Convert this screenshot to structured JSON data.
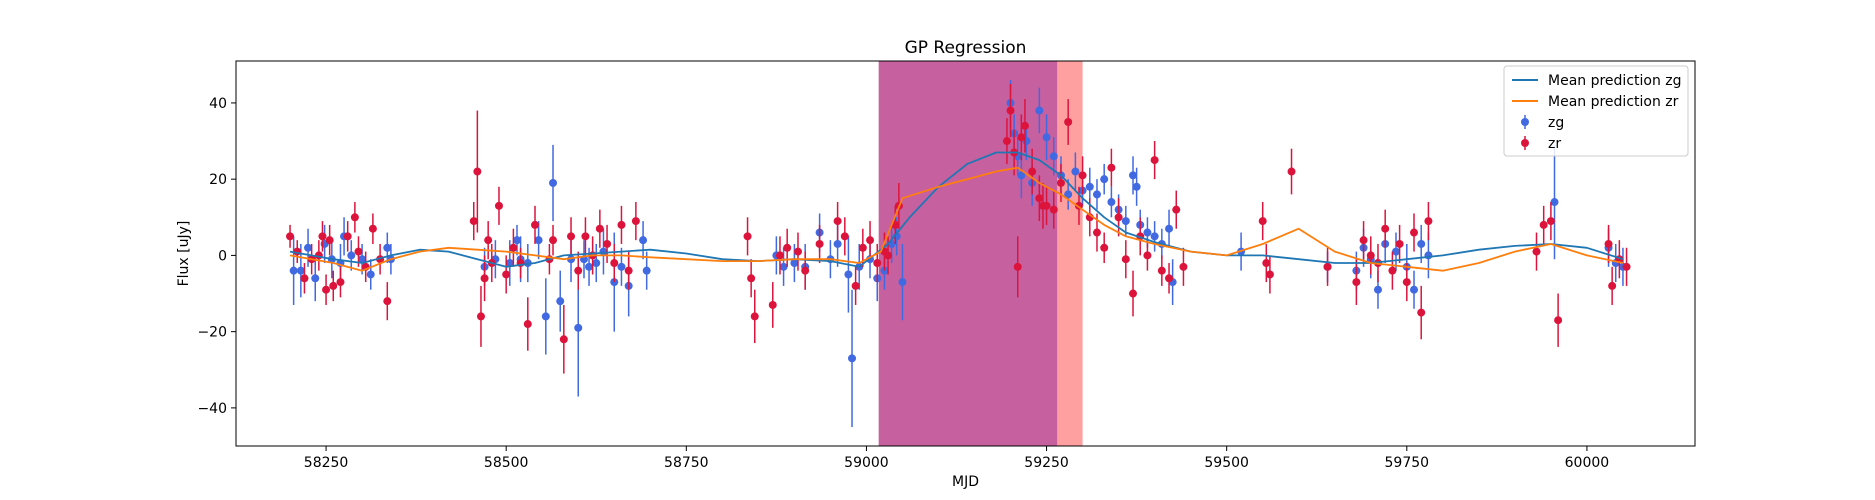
{
  "chart_data": {
    "type": "scatter",
    "title": "GP Regression",
    "xlabel": "MJD",
    "ylabel": "Flux [uJy]",
    "xlim": [
      58125,
      60150
    ],
    "ylim": [
      -50,
      51
    ],
    "xticks": [
      58250,
      58500,
      58750,
      59000,
      59250,
      59500,
      59750,
      60000
    ],
    "yticks": [
      -40,
      -20,
      0,
      20,
      40
    ],
    "grid": false,
    "legend_position": "top-right",
    "shaded_regions": [
      {
        "x_start": 59017,
        "x_end": 59265,
        "color": "#c7609f",
        "label": ""
      },
      {
        "x_start": 59265,
        "x_end": 59300,
        "color": "#ffa0a0",
        "label": ""
      }
    ],
    "lines": [
      {
        "name": "Mean prediction zg",
        "color": "#1f77b4",
        "x": [
          58200,
          58260,
          58300,
          58340,
          58380,
          58420,
          58460,
          58500,
          58540,
          58580,
          58620,
          58660,
          58700,
          58750,
          58800,
          58850,
          58900,
          58950,
          58990,
          59030,
          59060,
          59100,
          59140,
          59180,
          59210,
          59240,
          59270,
          59300,
          59330,
          59360,
          59400,
          59450,
          59500,
          59550,
          59600,
          59650,
          59700,
          59750,
          59800,
          59850,
          59900,
          59950,
          60000,
          60050
        ],
        "y": [
          1,
          -1,
          -2,
          0,
          1.5,
          1,
          -1,
          -3,
          -2,
          0,
          0.5,
          1,
          1.5,
          0.5,
          -1,
          -1.5,
          -1,
          -1.5,
          -3,
          3,
          10,
          18,
          24,
          27,
          27,
          25,
          21,
          15,
          10,
          6,
          3.5,
          1,
          0,
          0,
          -1,
          -2,
          -2,
          -1,
          0,
          1.5,
          2.5,
          3,
          2,
          -1
        ]
      },
      {
        "name": "Mean prediction zr",
        "color": "#ff7f0e",
        "x": [
          58200,
          58260,
          58300,
          58340,
          58380,
          58420,
          58460,
          58500,
          58540,
          58580,
          58620,
          58660,
          58700,
          58750,
          58800,
          58850,
          58900,
          58950,
          58990,
          59020,
          59050,
          59100,
          59140,
          59180,
          59210,
          59240,
          59270,
          59300,
          59330,
          59360,
          59400,
          59450,
          59500,
          59550,
          59600,
          59650,
          59700,
          59750,
          59800,
          59850,
          59900,
          59950,
          60000,
          60050
        ],
        "y": [
          0,
          -2,
          -4,
          -1,
          1,
          2,
          1.5,
          1,
          0,
          -1,
          0,
          0,
          -0.5,
          -1,
          -1.5,
          -1.5,
          -1,
          -1,
          -2,
          1,
          15,
          18,
          20,
          22,
          23,
          19,
          16,
          12,
          8,
          5,
          3,
          1,
          0,
          3,
          7,
          1,
          -2,
          -3,
          -4,
          -2,
          1,
          3,
          0,
          -2
        ]
      }
    ],
    "series": [
      {
        "name": "zg",
        "color": "#4169e1",
        "points": [
          [
            58205,
            -4,
            9
          ],
          [
            58215,
            -4,
            7
          ],
          [
            58225,
            2,
            5
          ],
          [
            58235,
            -6,
            6
          ],
          [
            58248,
            3,
            5
          ],
          [
            58258,
            -1,
            5
          ],
          [
            58270,
            -2,
            5
          ],
          [
            58275,
            5,
            5
          ],
          [
            58285,
            0,
            4
          ],
          [
            58300,
            -1,
            4
          ],
          [
            58312,
            -5,
            4
          ],
          [
            58335,
            2,
            4
          ],
          [
            58340,
            -1,
            4
          ],
          [
            58470,
            -3,
            5
          ],
          [
            58485,
            -1,
            5
          ],
          [
            58505,
            -2,
            6
          ],
          [
            58515,
            4,
            4
          ],
          [
            58520,
            -1,
            6
          ],
          [
            58530,
            -2,
            5
          ],
          [
            58545,
            4,
            5
          ],
          [
            58555,
            -16,
            10
          ],
          [
            58565,
            19,
            10
          ],
          [
            58575,
            -12,
            8
          ],
          [
            58590,
            -1,
            6
          ],
          [
            58600,
            -19,
            18
          ],
          [
            58608,
            -1,
            5
          ],
          [
            58615,
            -3,
            5
          ],
          [
            58625,
            -2,
            5
          ],
          [
            58635,
            1,
            6
          ],
          [
            58650,
            -7,
            13
          ],
          [
            58660,
            -3,
            5
          ],
          [
            58670,
            -8,
            8
          ],
          [
            58690,
            4,
            5
          ],
          [
            58695,
            -4,
            5
          ],
          [
            58875,
            0,
            5
          ],
          [
            58885,
            -3,
            5
          ],
          [
            58900,
            -2,
            5
          ],
          [
            58915,
            -3,
            6
          ],
          [
            58935,
            6,
            5
          ],
          [
            58950,
            -1,
            5
          ],
          [
            58960,
            3,
            6
          ],
          [
            58975,
            -5,
            10
          ],
          [
            58980,
            -27,
            18
          ],
          [
            58990,
            -3,
            6
          ],
          [
            59005,
            -1,
            5
          ],
          [
            59015,
            -6,
            6
          ],
          [
            59025,
            -4,
            5
          ],
          [
            59035,
            3,
            5
          ],
          [
            59042,
            5,
            5
          ],
          [
            59050,
            -7,
            10
          ],
          [
            59200,
            40,
            6
          ],
          [
            59205,
            32,
            5
          ],
          [
            59210,
            26,
            5
          ],
          [
            59215,
            21,
            6
          ],
          [
            59222,
            30,
            5
          ],
          [
            59230,
            19,
            6
          ],
          [
            59240,
            38,
            6
          ],
          [
            59250,
            31,
            6
          ],
          [
            59260,
            26,
            5
          ],
          [
            59270,
            21,
            5
          ],
          [
            59280,
            16,
            4
          ],
          [
            59290,
            22,
            5
          ],
          [
            59300,
            17,
            4
          ],
          [
            59310,
            18,
            5
          ],
          [
            59320,
            16,
            4
          ],
          [
            59330,
            20,
            4
          ],
          [
            59340,
            14,
            4
          ],
          [
            59350,
            12,
            4
          ],
          [
            59360,
            9,
            4
          ],
          [
            59370,
            21,
            5
          ],
          [
            59375,
            18,
            5
          ],
          [
            59380,
            8,
            4
          ],
          [
            59390,
            6,
            4
          ],
          [
            59400,
            5,
            4
          ],
          [
            59410,
            3,
            4
          ],
          [
            59420,
            7,
            5
          ],
          [
            59425,
            -7,
            6
          ],
          [
            59520,
            1,
            5
          ],
          [
            59640,
            -3,
            4
          ],
          [
            59680,
            -4,
            5
          ],
          [
            59690,
            2,
            5
          ],
          [
            59700,
            -1,
            5
          ],
          [
            59710,
            -9,
            5
          ],
          [
            59720,
            3,
            5
          ],
          [
            59735,
            1,
            5
          ],
          [
            59750,
            -3,
            6
          ],
          [
            59760,
            -9,
            5
          ],
          [
            59770,
            3,
            5
          ],
          [
            59780,
            0,
            6
          ],
          [
            59955,
            14,
            15
          ],
          [
            60030,
            2,
            5
          ],
          [
            60040,
            -2,
            5
          ],
          [
            60050,
            -3,
            5
          ]
        ]
      },
      {
        "name": "zr",
        "color": "#dc143c",
        "points": [
          [
            58200,
            5,
            3
          ],
          [
            58210,
            1,
            3
          ],
          [
            58220,
            -6,
            4
          ],
          [
            58230,
            -1,
            4
          ],
          [
            58240,
            0,
            4
          ],
          [
            58245,
            5,
            4
          ],
          [
            58250,
            -9,
            4
          ],
          [
            58255,
            4,
            4
          ],
          [
            58260,
            -8,
            4
          ],
          [
            58270,
            -7,
            4
          ],
          [
            58280,
            5,
            4
          ],
          [
            58290,
            10,
            4
          ],
          [
            58295,
            1,
            4
          ],
          [
            58305,
            -3,
            4
          ],
          [
            58315,
            7,
            4
          ],
          [
            58325,
            -1,
            4
          ],
          [
            58335,
            -12,
            5
          ],
          [
            58455,
            9,
            5
          ],
          [
            58460,
            22,
            16
          ],
          [
            58465,
            -16,
            8
          ],
          [
            58470,
            -6,
            6
          ],
          [
            58475,
            4,
            5
          ],
          [
            58480,
            -2,
            5
          ],
          [
            58490,
            13,
            5
          ],
          [
            58500,
            -5,
            5
          ],
          [
            58510,
            2,
            5
          ],
          [
            58520,
            -2,
            4
          ],
          [
            58530,
            -18,
            7
          ],
          [
            58540,
            8,
            5
          ],
          [
            58560,
            -1,
            4
          ],
          [
            58565,
            4,
            4
          ],
          [
            58580,
            -22,
            9
          ],
          [
            58590,
            5,
            5
          ],
          [
            58600,
            -4,
            5
          ],
          [
            58610,
            5,
            5
          ],
          [
            58620,
            0,
            5
          ],
          [
            58630,
            7,
            5
          ],
          [
            58640,
            3,
            5
          ],
          [
            58650,
            -2,
            5
          ],
          [
            58660,
            8,
            5
          ],
          [
            58670,
            -4,
            5
          ],
          [
            58680,
            9,
            5
          ],
          [
            58835,
            5,
            5
          ],
          [
            58840,
            -6,
            5
          ],
          [
            58845,
            -16,
            7
          ],
          [
            58870,
            -13,
            6
          ],
          [
            58880,
            0,
            5
          ],
          [
            58890,
            2,
            5
          ],
          [
            58905,
            1,
            5
          ],
          [
            58915,
            -4,
            5
          ],
          [
            58935,
            3,
            5
          ],
          [
            58960,
            9,
            5
          ],
          [
            58970,
            5,
            5
          ],
          [
            58985,
            -8,
            5
          ],
          [
            58995,
            2,
            5
          ],
          [
            59005,
            4,
            5
          ],
          [
            59015,
            -2,
            5
          ],
          [
            59025,
            1,
            5
          ],
          [
            59030,
            0,
            5
          ],
          [
            59040,
            8,
            5
          ],
          [
            59045,
            13,
            6
          ],
          [
            59195,
            30,
            6
          ],
          [
            59200,
            38,
            7
          ],
          [
            59205,
            27,
            6
          ],
          [
            59210,
            -3,
            8
          ],
          [
            59215,
            31,
            6
          ],
          [
            59220,
            34,
            7
          ],
          [
            59230,
            22,
            6
          ],
          [
            59240,
            15,
            6
          ],
          [
            59245,
            13,
            6
          ],
          [
            59250,
            13,
            5
          ],
          [
            59260,
            12,
            5
          ],
          [
            59270,
            19,
            5
          ],
          [
            59280,
            35,
            6
          ],
          [
            59295,
            13,
            5
          ],
          [
            59300,
            21,
            5
          ],
          [
            59310,
            10,
            5
          ],
          [
            59320,
            6,
            5
          ],
          [
            59330,
            2,
            4
          ],
          [
            59340,
            23,
            5
          ],
          [
            59350,
            10,
            5
          ],
          [
            59360,
            -1,
            5
          ],
          [
            59370,
            -10,
            6
          ],
          [
            59380,
            5,
            5
          ],
          [
            59390,
            0,
            4
          ],
          [
            59400,
            25,
            5
          ],
          [
            59410,
            -4,
            4
          ],
          [
            59420,
            -6,
            4
          ],
          [
            59430,
            12,
            5
          ],
          [
            59440,
            -3,
            5
          ],
          [
            59550,
            9,
            5
          ],
          [
            59555,
            -2,
            5
          ],
          [
            59560,
            -5,
            5
          ],
          [
            59590,
            22,
            6
          ],
          [
            59640,
            -3,
            5
          ],
          [
            59680,
            -7,
            6
          ],
          [
            59690,
            4,
            5
          ],
          [
            59700,
            0,
            5
          ],
          [
            59710,
            -2,
            5
          ],
          [
            59720,
            7,
            5
          ],
          [
            59730,
            -4,
            5
          ],
          [
            59740,
            3,
            5
          ],
          [
            59750,
            -7,
            5
          ],
          [
            59760,
            6,
            5
          ],
          [
            59770,
            -15,
            7
          ],
          [
            59780,
            9,
            5
          ],
          [
            59930,
            1,
            5
          ],
          [
            59940,
            8,
            5
          ],
          [
            59950,
            9,
            5
          ],
          [
            59960,
            -17,
            7
          ],
          [
            60030,
            3,
            5
          ],
          [
            60035,
            -8,
            5
          ],
          [
            60045,
            -1,
            5
          ],
          [
            60055,
            -3,
            5
          ]
        ]
      }
    ],
    "legend": [
      {
        "label": "Mean prediction zg",
        "kind": "line",
        "color": "#1f77b4"
      },
      {
        "label": "Mean prediction zr",
        "kind": "line",
        "color": "#ff7f0e"
      },
      {
        "label": "zg",
        "kind": "errorbar",
        "color": "#4169e1"
      },
      {
        "label": "zr",
        "kind": "errorbar",
        "color": "#dc143c"
      }
    ]
  }
}
